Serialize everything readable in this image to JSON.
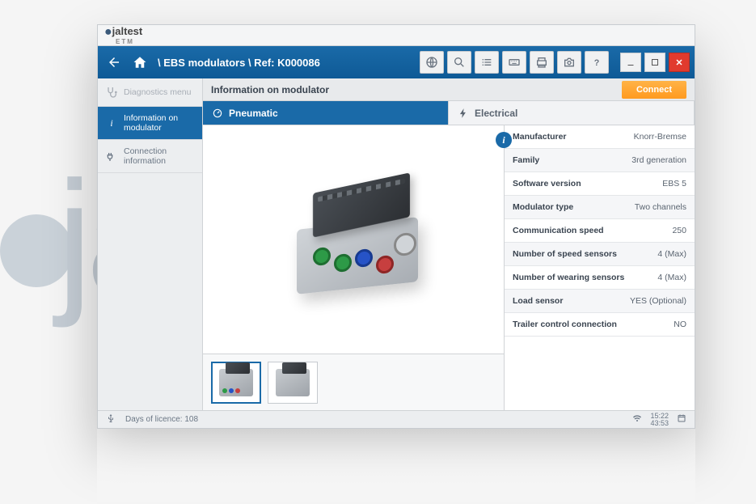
{
  "brand": {
    "name": "jaltest",
    "sub": "ETM"
  },
  "breadcrumb": "\\ EBS modulators \\ Ref: K000086",
  "toolbar": {
    "connect_label": "Connect"
  },
  "sidebar": {
    "items": [
      {
        "label": "Diagnostics menu",
        "active": false,
        "disabled": true
      },
      {
        "label": "Information on modulator",
        "active": true,
        "disabled": false
      },
      {
        "label": "Connection information",
        "active": false,
        "disabled": false
      }
    ]
  },
  "main": {
    "title": "Information on modulator",
    "tabs": [
      {
        "label": "Pneumatic",
        "active": true
      },
      {
        "label": "Electrical",
        "active": false
      }
    ]
  },
  "properties": [
    {
      "k": "Manufacturer",
      "v": "Knorr-Bremse"
    },
    {
      "k": "Family",
      "v": "3rd generation"
    },
    {
      "k": "Software version",
      "v": "EBS 5"
    },
    {
      "k": "Modulator type",
      "v": "Two channels"
    },
    {
      "k": "Communication speed",
      "v": "250"
    },
    {
      "k": "Number of speed sensors",
      "v": "4 (Max)"
    },
    {
      "k": "Number of wearing sensors",
      "v": "4 (Max)"
    },
    {
      "k": "Load sensor",
      "v": "YES (Optional)"
    },
    {
      "k": "Trailer control connection",
      "v": "NO"
    }
  ],
  "thumbnails": {
    "count": 2,
    "selected_index": 0
  },
  "status": {
    "licence_label": "Days of licence:",
    "licence_days": "108",
    "clock_lines": [
      "15:22",
      "43:53"
    ]
  },
  "colors": {
    "primary": "#1a6aa8",
    "accent": "#ff9a1f",
    "danger": "#e13a2e",
    "bg": "#eceef0",
    "port_green": "#2d9a47",
    "port_blue": "#2653c7",
    "port_red": "#c73f3f"
  }
}
